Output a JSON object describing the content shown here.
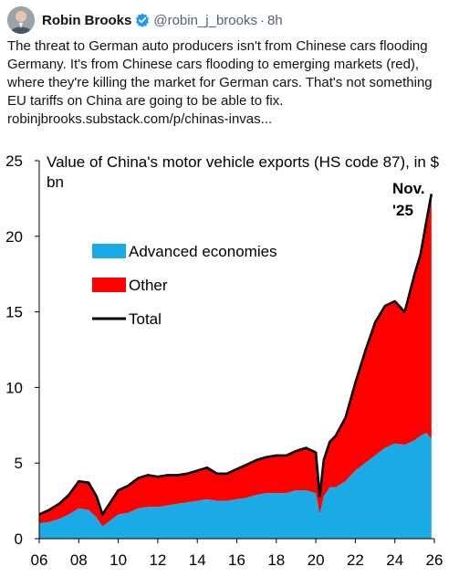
{
  "tweet": {
    "author_name": "Robin Brooks",
    "handle": "@robin_j_brooks",
    "separator": "·",
    "time": "8h",
    "text": "The threat to German auto producers isn't from Chinese cars flooding Germany. It's from Chinese cars flooding to emerging markets (red), where they're killing the market for German cars. That's not something EU tariffs on China are going to be able to fix.",
    "link": "robinjbrooks.substack.com/p/chinas-invas...",
    "verified_color": "#1d9bf0",
    "avatar_icon": "person-avatar-icon"
  },
  "chart_data": {
    "type": "area",
    "title_line1": "Value of China's motor vehicle exports (HS code 87), in $",
    "title_line2": "bn",
    "annotation_line1": "Nov.",
    "annotation_line2": "'25",
    "ylim": [
      0,
      25
    ],
    "xlim": [
      2006,
      2026
    ],
    "y_ticks": [
      "0",
      "5",
      "10",
      "15",
      "20",
      "25"
    ],
    "x_ticks": [
      "06",
      "08",
      "10",
      "12",
      "14",
      "16",
      "18",
      "20",
      "22",
      "24",
      "26"
    ],
    "legend": [
      {
        "label": "Advanced economies",
        "color": "#1aabe6",
        "kind": "area"
      },
      {
        "label": "Other",
        "color": "#ff0000",
        "kind": "area"
      },
      {
        "label": "Total",
        "color": "#000000",
        "kind": "line"
      }
    ],
    "x": [
      2006.0,
      2006.5,
      2007.0,
      2007.5,
      2008.0,
      2008.5,
      2008.9,
      2009.2,
      2009.6,
      2010.0,
      2010.5,
      2011.0,
      2011.5,
      2012.0,
      2012.5,
      2013.0,
      2013.5,
      2014.0,
      2014.5,
      2015.0,
      2015.5,
      2016.0,
      2016.5,
      2017.0,
      2017.5,
      2018.0,
      2018.5,
      2019.0,
      2019.5,
      2020.0,
      2020.2,
      2020.4,
      2020.7,
      2021.0,
      2021.5,
      2022.0,
      2022.5,
      2023.0,
      2023.5,
      2024.0,
      2024.5,
      2025.0,
      2025.3,
      2025.6,
      2025.85
    ],
    "series": [
      {
        "name": "Advanced economies",
        "values": [
          1.0,
          1.1,
          1.3,
          1.6,
          2.0,
          1.9,
          1.4,
          0.8,
          1.2,
          1.6,
          1.7,
          2.0,
          2.1,
          2.1,
          2.2,
          2.3,
          2.4,
          2.5,
          2.6,
          2.5,
          2.5,
          2.6,
          2.7,
          2.9,
          3.0,
          3.0,
          3.0,
          3.2,
          3.2,
          3.0,
          1.6,
          2.8,
          3.4,
          3.4,
          3.8,
          4.5,
          5.0,
          5.5,
          6.0,
          6.3,
          6.2,
          6.5,
          6.8,
          7.0,
          6.6
        ]
      },
      {
        "name": "Other",
        "values": [
          0.6,
          0.8,
          1.0,
          1.3,
          1.8,
          1.8,
          1.4,
          0.8,
          1.2,
          1.6,
          1.8,
          2.0,
          2.1,
          2.0,
          2.0,
          1.9,
          1.9,
          2.0,
          2.1,
          1.8,
          1.8,
          2.0,
          2.2,
          2.3,
          2.4,
          2.5,
          2.5,
          2.6,
          2.8,
          2.7,
          1.2,
          2.4,
          3.0,
          3.4,
          4.2,
          5.8,
          7.4,
          8.8,
          9.4,
          9.4,
          8.8,
          11.0,
          12.0,
          14.0,
          16.2
        ]
      },
      {
        "name": "Total",
        "values": [
          1.6,
          1.9,
          2.3,
          2.9,
          3.8,
          3.7,
          2.8,
          1.6,
          2.4,
          3.2,
          3.5,
          4.0,
          4.2,
          4.1,
          4.2,
          4.2,
          4.3,
          4.5,
          4.7,
          4.3,
          4.3,
          4.6,
          4.9,
          5.2,
          5.4,
          5.5,
          5.5,
          5.8,
          6.0,
          5.7,
          2.8,
          5.2,
          6.4,
          6.8,
          8.0,
          10.3,
          12.4,
          14.3,
          15.4,
          15.7,
          15.0,
          17.5,
          18.8,
          21.0,
          22.8
        ]
      }
    ]
  }
}
